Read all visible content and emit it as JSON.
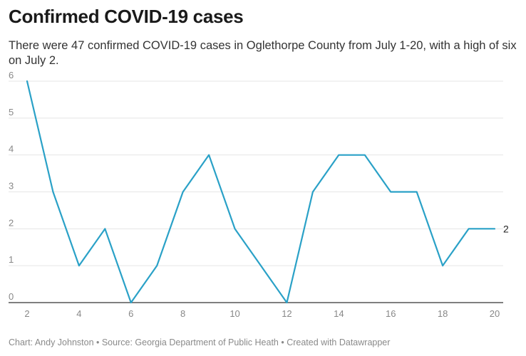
{
  "header": {
    "title": "Confirmed COVID-19 cases",
    "subtitle": "There were 47 confirmed COVID-19 cases in Oglethorpe County from July 1-20, with a high of six on July 2."
  },
  "footer": {
    "text": "Chart: Andy Johnston • Source: Georgia Department of Public Heath • Created with Datawrapper"
  },
  "chart_data": {
    "type": "line",
    "title": "Confirmed COVID-19 cases",
    "xlabel": "",
    "ylabel": "",
    "x": [
      2,
      3,
      4,
      5,
      6,
      7,
      8,
      9,
      10,
      11,
      12,
      13,
      14,
      15,
      16,
      17,
      18,
      19,
      20
    ],
    "series": [
      {
        "values": [
          6,
          3,
          1,
          2,
          0,
          1,
          3,
          4,
          2,
          1,
          0,
          3,
          4,
          4,
          3,
          3,
          1,
          2,
          2
        ]
      }
    ],
    "xticks": [
      "2",
      "4",
      "6",
      "8",
      "10",
      "12",
      "14",
      "16",
      "18",
      "20"
    ],
    "yticks": [
      "0",
      "1",
      "2",
      "3",
      "4",
      "5",
      "6"
    ],
    "xlim": [
      2,
      20
    ],
    "ylim": [
      0,
      6
    ],
    "end_label": "2",
    "grid": true,
    "line_color": "#2aa1c7",
    "grid_color": "#e5e5e5",
    "baseline_color": "#333333"
  }
}
